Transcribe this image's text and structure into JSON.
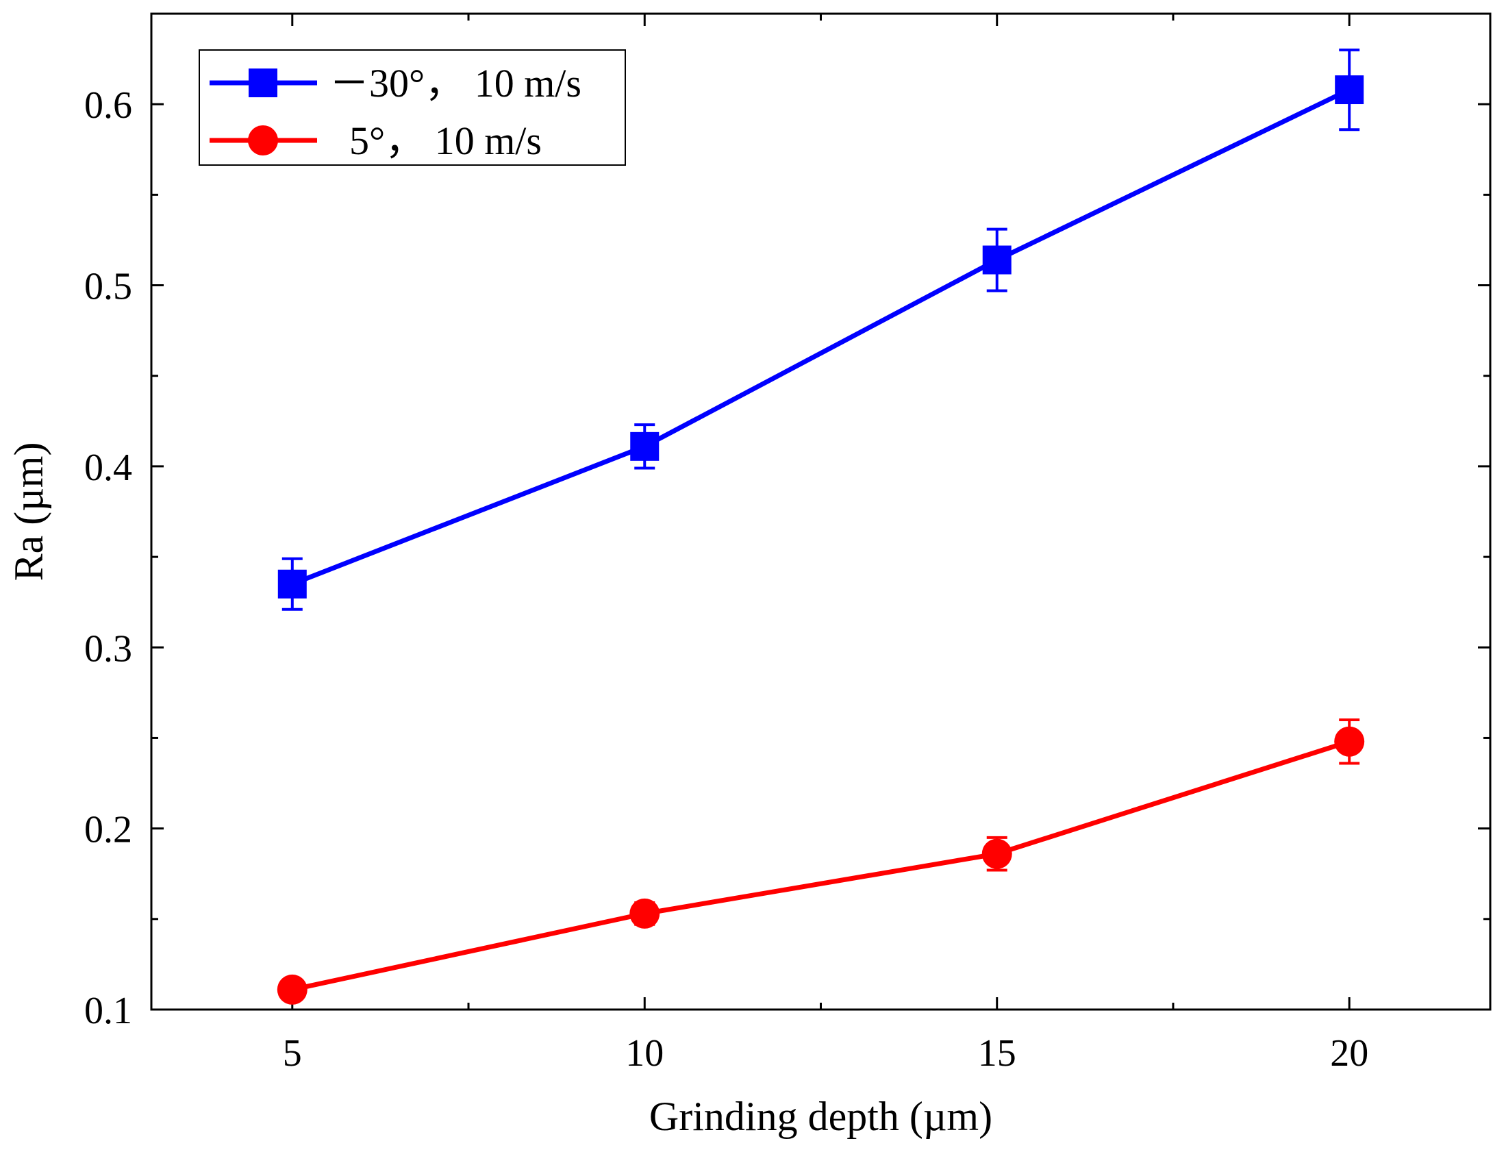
{
  "chart_data": {
    "type": "line",
    "title": "",
    "xlabel": "Grinding depth (µm)",
    "ylabel": "Ra (µm)",
    "xlim": [
      3,
      22
    ],
    "ylim": [
      0.1,
      0.65
    ],
    "x_ticks": [
      5,
      10,
      15,
      20
    ],
    "x_tick_labels": [
      "5",
      "10",
      "15",
      "20"
    ],
    "x_minor_ticks": [
      7.5,
      12.5,
      17.5
    ],
    "y_ticks": [
      0.1,
      0.2,
      0.3,
      0.4,
      0.5,
      0.6
    ],
    "y_tick_labels": [
      "0.1",
      "0.2",
      "0.3",
      "0.4",
      "0.5",
      "0.6"
    ],
    "y_minor_ticks": [
      0.15,
      0.25,
      0.35,
      0.45,
      0.55
    ],
    "grid": false,
    "legend_position": "top-left",
    "x": [
      5,
      10,
      15,
      20
    ],
    "series": [
      {
        "name": "－30°， 10 m/s",
        "color": "#0000ff",
        "marker": "square",
        "values": [
          0.335,
          0.411,
          0.514,
          0.608
        ],
        "error": [
          0.014,
          0.012,
          0.017,
          0.022
        ]
      },
      {
        "name": "  5°， 10 m/s",
        "color": "#ff0000",
        "marker": "circle",
        "values": [
          0.111,
          0.153,
          0.186,
          0.248
        ],
        "error": [
          0.003,
          0.006,
          0.009,
          0.012
        ]
      }
    ]
  }
}
